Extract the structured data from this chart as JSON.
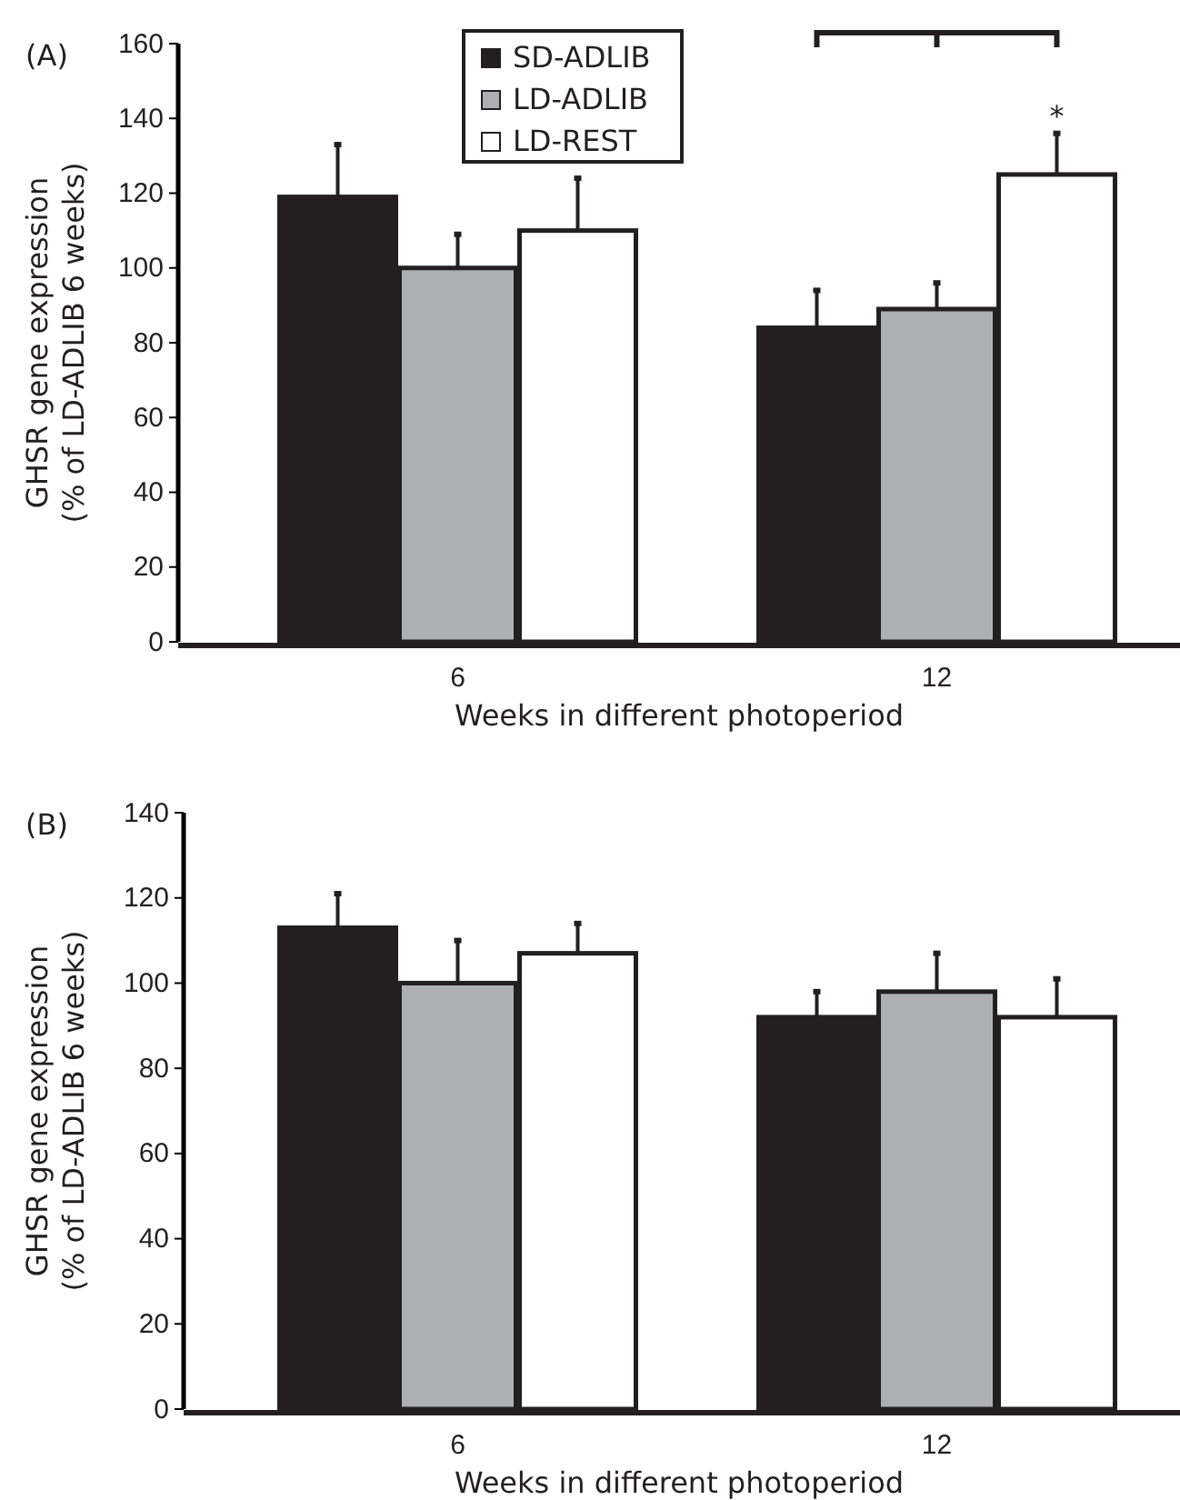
{
  "chart_data": [
    {
      "type": "bar",
      "title": "(A)",
      "categories": [
        "6",
        "12"
      ],
      "xlabel": "Weeks in different photoperiod",
      "ylabel": "GHSR gene expression\n(% of LD-ADLIB 6 weeks)",
      "ylim": [
        0,
        160
      ],
      "yticks": [
        0,
        20,
        40,
        60,
        80,
        100,
        120,
        140,
        160
      ],
      "legend": "top",
      "annotations": [
        "*"
      ],
      "series": [
        {
          "name": "SD-ADLIB",
          "color": "#231f20",
          "values": [
            119,
            84
          ],
          "errors": [
            [
              119,
              133
            ],
            [
              84,
              94
            ]
          ]
        },
        {
          "name": "LD-ADLIB",
          "color": "#aeafb2",
          "values": [
            100,
            89
          ],
          "errors": [
            [
              100,
              109
            ],
            [
              89,
              96
            ]
          ]
        },
        {
          "name": "LD-REST",
          "color": "#ffffff",
          "values": [
            110,
            125
          ],
          "errors": [
            [
              110,
              124
            ],
            [
              125,
              136
            ]
          ]
        }
      ]
    },
    {
      "type": "bar",
      "title": "(B)",
      "categories": [
        "6",
        "12"
      ],
      "xlabel": "Weeks in different photoperiod",
      "ylabel": "GHSR gene expression\n(% of LD-ADLIB 6 weeks)",
      "ylim": [
        0,
        140
      ],
      "yticks": [
        0,
        20,
        40,
        60,
        80,
        100,
        120,
        140
      ],
      "series": [
        {
          "color": "#231f20",
          "values": [
            113,
            92
          ],
          "errors": [
            [
              113,
              121
            ],
            [
              92,
              98
            ]
          ]
        },
        {
          "color": "#aeafb2",
          "values": [
            100,
            98
          ],
          "errors": [
            [
              100,
              110
            ],
            [
              98,
              107
            ]
          ]
        },
        {
          "color": "#ffffff",
          "values": [
            107,
            92
          ],
          "errors": [
            [
              107,
              114
            ],
            [
              92,
              101
            ]
          ]
        }
      ]
    }
  ]
}
